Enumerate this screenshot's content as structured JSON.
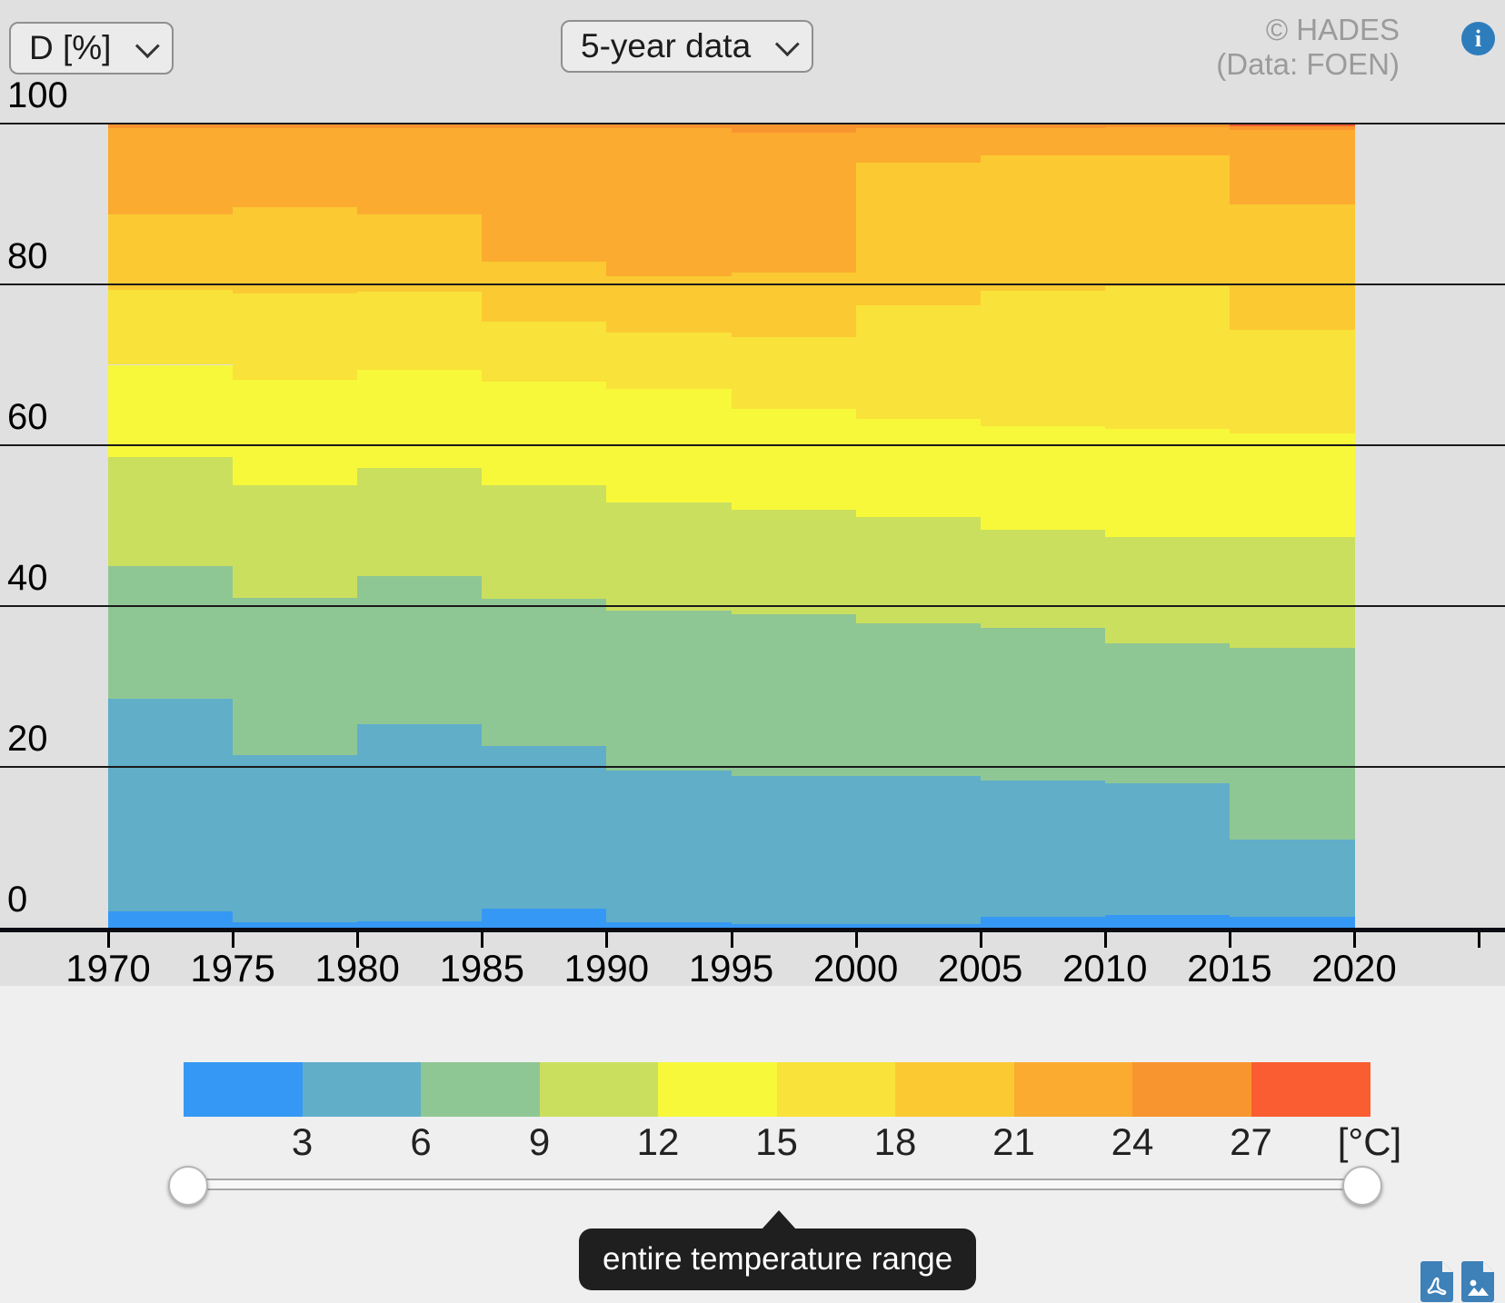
{
  "header": {
    "metric_select_value": "D [%]",
    "period_select_value": "5-year data",
    "copyright_line1": "© HADES",
    "copyright_line2": "(Data: FOEN)"
  },
  "chart_data": {
    "type": "area",
    "subtype": "stacked-step-duration-curve",
    "title": "",
    "xlabel": "",
    "ylabel": "D [%]",
    "x_categories": [
      "1970-1974",
      "1975-1979",
      "1980-1984",
      "1985-1989",
      "1990-1994",
      "1995-1999",
      "2000-2004",
      "2005-2009",
      "2010-2014",
      "2015-2019"
    ],
    "x_tick_labels": [
      "1970",
      "1975",
      "1980",
      "1985",
      "1990",
      "1995",
      "2000",
      "2005",
      "2010",
      "2015",
      "2020"
    ],
    "y_axis": {
      "ticks": [
        0,
        20,
        40,
        60,
        80,
        100
      ],
      "range": [
        0,
        100
      ],
      "grid": true
    },
    "series": [
      {
        "name": "< 3 °C",
        "color": "#3598f4",
        "values": [
          2.0,
          0.7,
          0.8,
          2.4,
          0.7,
          0.5,
          0.5,
          1.4,
          1.6,
          1.4
        ]
      },
      {
        "name": "3–6 °C",
        "color": "#61aec9",
        "values": [
          26.5,
          20.8,
          24.5,
          20.2,
          18.8,
          18.4,
          18.4,
          16.9,
          16.4,
          9.6
        ]
      },
      {
        "name": "6–9 °C",
        "color": "#8fc794",
        "values": [
          16.5,
          19.5,
          18.4,
          18.3,
          19.9,
          20.1,
          19.0,
          19.0,
          17.4,
          23.8
        ]
      },
      {
        "name": "9–12 °C",
        "color": "#cbdf5f",
        "values": [
          13.5,
          14.0,
          13.5,
          14.1,
          13.5,
          13.0,
          13.2,
          12.2,
          13.2,
          13.8
        ]
      },
      {
        "name": "12–15 °C",
        "color": "#f7f83a",
        "values": [
          11.5,
          13.1,
          12.2,
          12.9,
          14.1,
          12.5,
          12.2,
          12.9,
          13.4,
          12.9
        ]
      },
      {
        "name": "15–18 °C",
        "color": "#f9e23a",
        "values": [
          9.3,
          10.8,
          9.7,
          7.5,
          7.0,
          9.0,
          14.1,
          16.8,
          17.8,
          12.8
        ]
      },
      {
        "name": "18–21 °C",
        "color": "#fbca32",
        "values": [
          9.4,
          10.7,
          9.6,
          7.4,
          7.0,
          8.0,
          17.7,
          16.8,
          16.2,
          15.6
        ]
      },
      {
        "name": "21–24 °C",
        "color": "#fbab30",
        "values": [
          10.7,
          9.8,
          10.7,
          16.6,
          18.4,
          17.4,
          4.3,
          3.4,
          3.5,
          9.3
        ]
      },
      {
        "name": "24–27 °C",
        "color": "#f9952e",
        "values": [
          0.6,
          0.6,
          0.6,
          0.6,
          0.6,
          1.1,
          0.6,
          0.6,
          0.5,
          0.5
        ]
      },
      {
        "name": "> 27 °C",
        "color": "#f95d31",
        "values": [
          0.0,
          0.0,
          0.0,
          0.0,
          0.0,
          0.0,
          0.0,
          0.0,
          0.0,
          0.3
        ]
      }
    ],
    "legend_position": "bottom"
  },
  "legend": {
    "tick_labels": [
      "3",
      "6",
      "9",
      "12",
      "15",
      "18",
      "21",
      "24",
      "27"
    ],
    "unit_label": "[°C]"
  },
  "slider": {
    "tooltip_label": "entire temperature range"
  },
  "accent_colors": {
    "info_icon_blue": "#2d7dbd",
    "export_icon_blue": "#3e80b8",
    "tooltip_background": "#1f1f1f"
  }
}
